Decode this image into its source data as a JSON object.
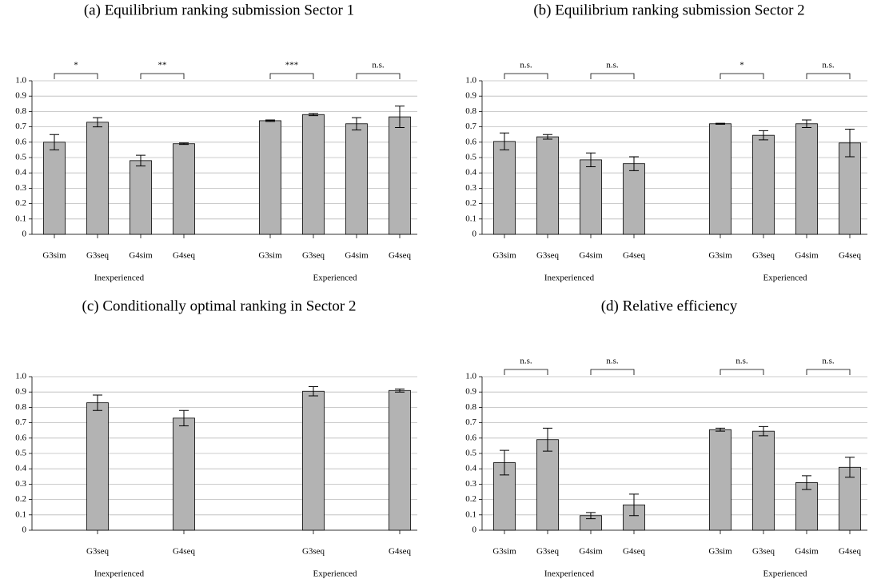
{
  "chart_data": [
    {
      "type": "bar",
      "title": "(a) Equilibrium ranking submission Sector 1",
      "categories": [
        "G3sim",
        "G3seq",
        "G4sim",
        "G4seq",
        null,
        "G3sim",
        "G3seq",
        "G4sim",
        "G4seq"
      ],
      "values": [
        0.6,
        0.73,
        0.48,
        0.59,
        null,
        0.74,
        0.78,
        0.72,
        0.765
      ],
      "errors": [
        0.05,
        0.03,
        0.035,
        0.005,
        null,
        0.005,
        0.007,
        0.04,
        0.07
      ],
      "groups": [
        "Inexperienced",
        "Experienced"
      ],
      "annotations": [
        "*",
        "**",
        "***",
        "n.s."
      ],
      "color": "#b3b3b3",
      "ylim": [
        0,
        1
      ],
      "grid": true,
      "yticks": [
        0,
        0.1,
        0.2,
        0.3,
        0.4,
        0.5,
        0.6,
        0.7,
        0.8,
        0.9,
        {
          "value": 1,
          "label": "1.0"
        }
      ]
    },
    {
      "type": "bar",
      "title": "(b) Equilibrium ranking submission Sector 2",
      "categories": [
        "G3sim",
        "G3seq",
        "G4sim",
        "G4seq",
        null,
        "G3sim",
        "G3seq",
        "G4sim",
        "G4seq"
      ],
      "values": [
        0.605,
        0.635,
        0.485,
        0.46,
        null,
        0.72,
        0.645,
        0.72,
        0.595
      ],
      "errors": [
        0.055,
        0.015,
        0.045,
        0.045,
        null,
        0.003,
        0.03,
        0.025,
        0.09
      ],
      "groups": [
        "Inexperienced",
        "Experienced"
      ],
      "annotations": [
        "n.s.",
        "n.s.",
        "*",
        "n.s."
      ],
      "color": "#b3b3b3",
      "ylim": [
        0,
        1
      ],
      "grid": true,
      "yticks": [
        0,
        0.1,
        0.2,
        0.3,
        0.4,
        0.5,
        0.6,
        0.7,
        0.8,
        0.9,
        {
          "value": 1,
          "label": "1.0"
        }
      ]
    },
    {
      "type": "bar",
      "title": "(c) Conditionally optimal ranking in Sector 2",
      "categories": [
        null,
        "G3seq",
        null,
        "G4seq",
        null,
        null,
        "G3seq",
        null,
        "G4seq"
      ],
      "values": [
        null,
        0.83,
        null,
        0.73,
        0,
        null,
        0.905,
        null,
        0.91
      ],
      "errors": [
        null,
        0.05,
        null,
        0.05,
        null,
        null,
        0.03,
        null,
        0.01
      ],
      "groups": [
        "Inexperienced",
        "Experienced"
      ],
      "color": "#b3b3b3",
      "ylim": [
        0,
        1
      ],
      "grid": true,
      "yticks": [
        0,
        0.1,
        0.2,
        0.3,
        0.4,
        0.5,
        0.6,
        0.7,
        0.8,
        0.9,
        {
          "value": 1,
          "label": "1.0"
        }
      ]
    },
    {
      "type": "bar",
      "title": "(d) Relative efficiency",
      "categories": [
        "G3sim",
        "G3seq",
        "G4sim",
        "G4seq",
        null,
        "G3sim",
        "G3seq",
        "G4sim",
        "G4seq"
      ],
      "values": [
        0.44,
        0.59,
        0.095,
        0.165,
        0,
        0.655,
        0.645,
        0.31,
        0.41
      ],
      "errors": [
        0.08,
        0.075,
        0.02,
        0.07,
        null,
        0.01,
        0.03,
        0.045,
        0.065
      ],
      "groups": [
        "Inexperienced",
        "Experienced"
      ],
      "annotations": [
        "n.s.",
        "n.s.",
        "n.s.",
        "n.s."
      ],
      "color": "#b3b3b3",
      "ylim": [
        0,
        1
      ],
      "grid": true,
      "yticks": [
        0,
        0.1,
        0.2,
        0.3,
        0.4,
        0.5,
        0.6,
        0.7,
        0.8,
        0.9,
        {
          "value": 1,
          "label": "1.0"
        }
      ]
    }
  ]
}
